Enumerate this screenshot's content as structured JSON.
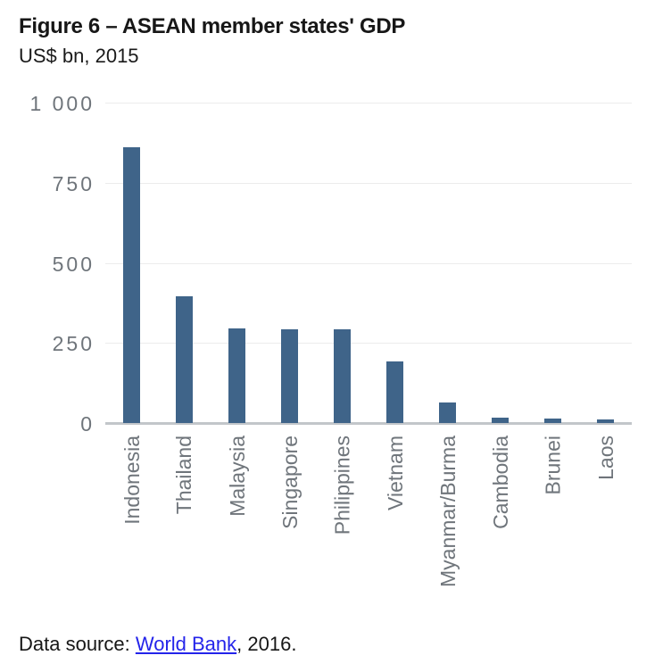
{
  "chart_data": {
    "type": "bar",
    "title": "Figure 6 – ASEAN member states' GDP",
    "subtitle": "US$ bn, 2015",
    "categories": [
      "Indonesia",
      "Thailand",
      "Malaysia",
      "Singapore",
      "Philippines",
      "Vietnam",
      "Myanmar/Burma",
      "Cambodia",
      "Brunei",
      "Laos"
    ],
    "values": [
      860,
      395,
      296,
      293,
      292,
      193,
      63,
      18,
      15,
      12
    ],
    "xlabel": "",
    "ylabel": "US$ bn",
    "ylim": [
      0,
      1000
    ],
    "ytick_values": [
      1000,
      750,
      500,
      250,
      0
    ],
    "ytick_labels": [
      "1 000",
      "750",
      "500",
      "250",
      "0"
    ],
    "grid": "horizontal",
    "legend": "none",
    "bar_color": "#3f6489"
  },
  "footer": {
    "prefix": "Data source: ",
    "link_text": "World Bank",
    "suffix": ", 2016."
  },
  "colors": {
    "bar": "#3f6489",
    "axis_labels": "#6f757b",
    "gridline": "#ececec",
    "baseline": "#c2c6ca",
    "link": "#2424ea",
    "title": "#171717"
  }
}
